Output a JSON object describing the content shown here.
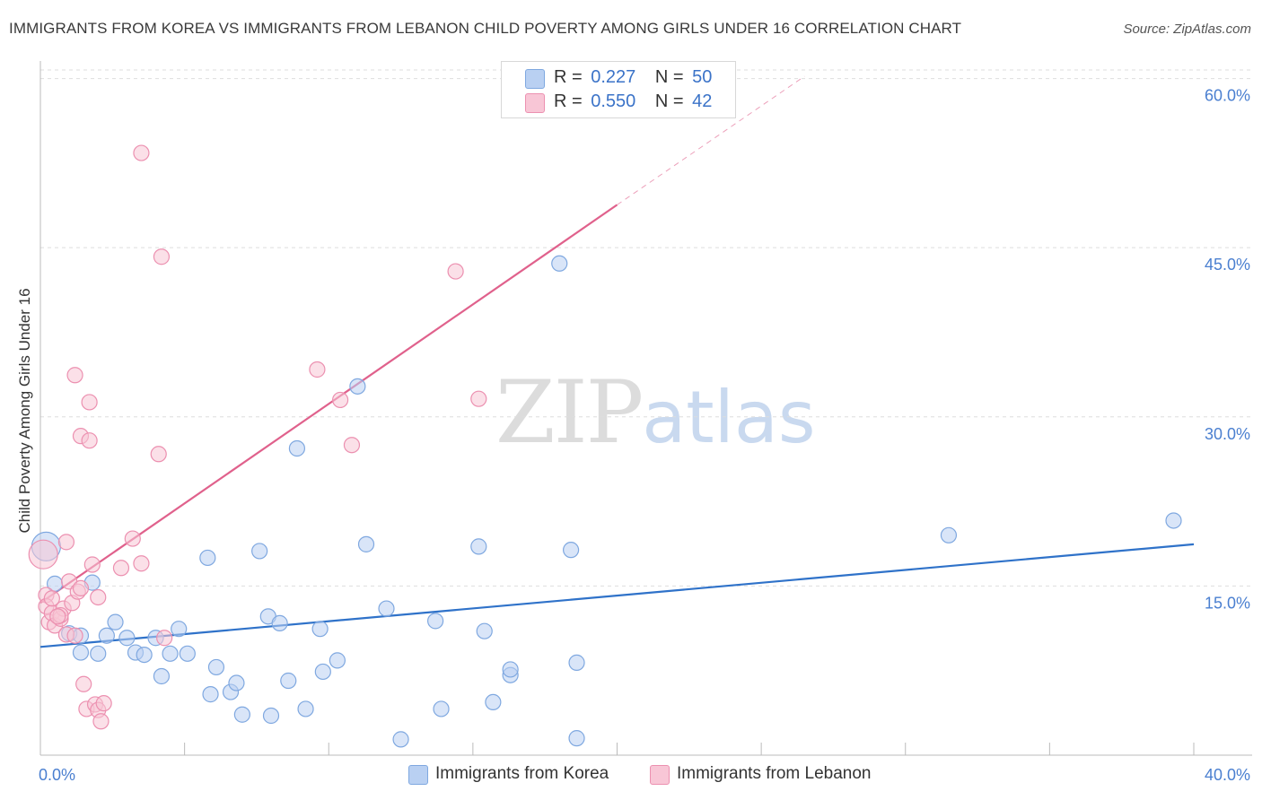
{
  "header": {
    "title": "IMMIGRANTS FROM KOREA VS IMMIGRANTS FROM LEBANON CHILD POVERTY AMONG GIRLS UNDER 16 CORRELATION CHART",
    "source": "Source: ZipAtlas.com"
  },
  "watermark": {
    "zip": "ZIP",
    "atlas": "atlas"
  },
  "legend": {
    "korea": {
      "r_label": "R =",
      "r_value": "0.227",
      "n_label": "N =",
      "n_value": "50"
    },
    "lebanon": {
      "r_label": "R =",
      "r_value": "0.550",
      "n_label": "N =",
      "n_value": "42"
    }
  },
  "bottom_legend": {
    "korea": "Immigrants from Korea",
    "lebanon": "Immigrants from Lebanon"
  },
  "colors": {
    "korea_fill": "#b9d0f2",
    "korea_stroke": "#7fa8e0",
    "korea_line": "#2f72c9",
    "lebanon_fill": "#f8c6d6",
    "lebanon_stroke": "#ec90b0",
    "lebanon_line": "#e0618c",
    "grid": "#dddddd",
    "tick": "#4a7fd0"
  },
  "chart_data": {
    "type": "scatter",
    "title": "IMMIGRANTS FROM KOREA VS IMMIGRANTS FROM LEBANON CHILD POVERTY AMONG GIRLS UNDER 16 CORRELATION CHART",
    "xlabel": "",
    "ylabel": "Child Poverty Among Girls Under 16",
    "xlim": [
      0,
      40
    ],
    "ylim": [
      0,
      61
    ],
    "x_tick_labels": [
      "0.0%",
      "40.0%"
    ],
    "y_ticks": [
      15,
      30,
      45,
      60
    ],
    "y_tick_labels": [
      "15.0%",
      "30.0%",
      "45.0%",
      "60.0%"
    ],
    "grid": true,
    "series": [
      {
        "name": "Immigrants from Korea",
        "R": 0.227,
        "N": 50,
        "trend": {
          "x": [
            0,
            40
          ],
          "y": [
            9.6,
            18.7
          ]
        },
        "points": [
          [
            0.2,
            18.5
          ],
          [
            0.5,
            15.2
          ],
          [
            1.8,
            15.3
          ],
          [
            2.6,
            11.8
          ],
          [
            2.3,
            10.6
          ],
          [
            3.0,
            10.4
          ],
          [
            1.0,
            10.8
          ],
          [
            1.4,
            10.6
          ],
          [
            1.4,
            9.1
          ],
          [
            2.0,
            9.0
          ],
          [
            3.3,
            9.1
          ],
          [
            3.6,
            8.9
          ],
          [
            4.0,
            10.4
          ],
          [
            4.2,
            7.0
          ],
          [
            4.5,
            9.0
          ],
          [
            4.8,
            11.2
          ],
          [
            5.1,
            9.0
          ],
          [
            5.9,
            5.4
          ],
          [
            5.8,
            17.5
          ],
          [
            6.1,
            7.8
          ],
          [
            6.6,
            5.6
          ],
          [
            6.8,
            6.4
          ],
          [
            7.0,
            3.6
          ],
          [
            7.6,
            18.1
          ],
          [
            7.9,
            12.3
          ],
          [
            8.0,
            3.5
          ],
          [
            8.3,
            11.7
          ],
          [
            8.6,
            6.6
          ],
          [
            8.9,
            27.2
          ],
          [
            9.2,
            4.1
          ],
          [
            9.7,
            11.2
          ],
          [
            9.8,
            7.4
          ],
          [
            10.3,
            8.4
          ],
          [
            11.0,
            32.7
          ],
          [
            11.3,
            18.7
          ],
          [
            12.0,
            13.0
          ],
          [
            12.5,
            1.4
          ],
          [
            13.7,
            11.9
          ],
          [
            13.9,
            4.1
          ],
          [
            15.2,
            18.5
          ],
          [
            15.4,
            11.0
          ],
          [
            15.7,
            4.7
          ],
          [
            16.3,
            7.1
          ],
          [
            16.3,
            7.6
          ],
          [
            18.0,
            43.6
          ],
          [
            18.6,
            1.5
          ],
          [
            18.6,
            8.2
          ],
          [
            18.4,
            18.2
          ],
          [
            31.5,
            19.5
          ],
          [
            39.3,
            20.8
          ]
        ]
      },
      {
        "name": "Immigrants from Lebanon",
        "R": 0.55,
        "N": 42,
        "trend": {
          "x": [
            0,
            20
          ],
          "y": [
            13.5,
            48.8
          ]
        },
        "trend_dashed": {
          "x": [
            20,
            26.5
          ],
          "y": [
            48.8,
            60.2
          ]
        },
        "points": [
          [
            0.1,
            17.8
          ],
          [
            0.2,
            14.2
          ],
          [
            0.2,
            13.2
          ],
          [
            0.3,
            11.8
          ],
          [
            0.4,
            12.6
          ],
          [
            0.5,
            11.5
          ],
          [
            0.7,
            12.1
          ],
          [
            0.8,
            13.0
          ],
          [
            0.7,
            12.4
          ],
          [
            0.9,
            10.7
          ],
          [
            0.9,
            18.9
          ],
          [
            1.1,
            13.5
          ],
          [
            1.0,
            15.4
          ],
          [
            1.2,
            33.7
          ],
          [
            1.3,
            14.5
          ],
          [
            1.4,
            14.8
          ],
          [
            1.4,
            28.3
          ],
          [
            1.5,
            6.3
          ],
          [
            1.6,
            4.1
          ],
          [
            1.7,
            27.9
          ],
          [
            1.7,
            31.3
          ],
          [
            1.8,
            16.9
          ],
          [
            1.9,
            4.5
          ],
          [
            2.0,
            4.0
          ],
          [
            2.0,
            14.0
          ],
          [
            2.1,
            3.0
          ],
          [
            2.2,
            4.6
          ],
          [
            2.8,
            16.6
          ],
          [
            3.2,
            19.2
          ],
          [
            3.5,
            17.0
          ],
          [
            3.5,
            53.4
          ],
          [
            4.1,
            26.7
          ],
          [
            4.2,
            44.2
          ],
          [
            4.3,
            10.4
          ],
          [
            9.6,
            34.2
          ],
          [
            10.4,
            31.5
          ],
          [
            10.8,
            27.5
          ],
          [
            14.4,
            42.9
          ],
          [
            15.2,
            31.6
          ],
          [
            1.2,
            10.6
          ],
          [
            0.6,
            12.3
          ],
          [
            0.4,
            13.9
          ]
        ]
      }
    ]
  }
}
